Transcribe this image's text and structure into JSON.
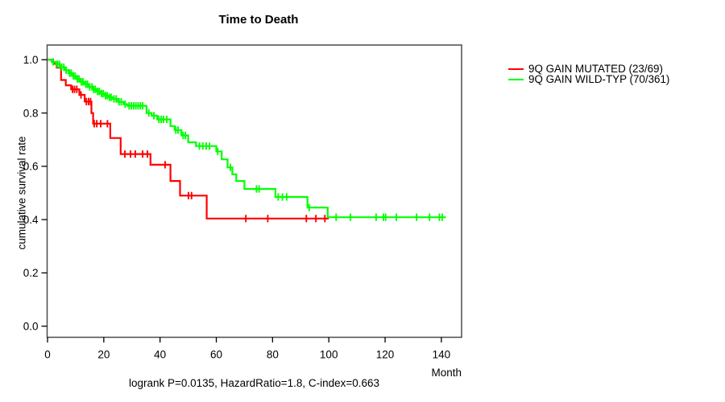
{
  "title": "Time to Death",
  "footer": "logrank P=0.0135, HazardRatio=1.8, C-index=0.663",
  "legend": {
    "items": [
      {
        "label": "9Q GAIN MUTATED (23/69)",
        "color": "#ff0000"
      },
      {
        "label": "9Q GAIN WILD-TYP (70/361)",
        "color": "#00ff00"
      }
    ]
  },
  "chart_data": {
    "type": "line",
    "subtype": "kaplan-meier-step",
    "title": "Time to Death",
    "xlabel": "Month",
    "ylabel": "cumulative survival rate",
    "xlim": [
      0,
      147
    ],
    "ylim": [
      0.0,
      1.0
    ],
    "grid": false,
    "legend_position": "right-outside",
    "annotation": "logrank P=0.0135, HazardRatio=1.8, C-index=0.663",
    "x_ticks": [
      "0",
      "20",
      "40",
      "60",
      "80",
      "100",
      "120",
      "140"
    ],
    "y_ticks": [
      "0.0",
      "0.2",
      "0.4",
      "0.6",
      "0.8",
      "1.0"
    ],
    "axis_color": "#4a4a4a",
    "series": [
      {
        "name": "9Q GAIN MUTATED (23/69)",
        "color": "#ff0000",
        "end_time": 100,
        "steps": [
          [
            0,
            1.0
          ],
          [
            2.0,
            0.985
          ],
          [
            3.3,
            0.97
          ],
          [
            4.8,
            0.924
          ],
          [
            6.5,
            0.904
          ],
          [
            8.4,
            0.889
          ],
          [
            11.3,
            0.868
          ],
          [
            13.2,
            0.843
          ],
          [
            15.6,
            0.8
          ],
          [
            16.2,
            0.76
          ],
          [
            22.3,
            0.706
          ],
          [
            26.0,
            0.646
          ],
          [
            36.6,
            0.606
          ],
          [
            43.7,
            0.545
          ],
          [
            47.1,
            0.49
          ],
          [
            56.6,
            0.404
          ]
        ],
        "censor_times": [
          8.9,
          9.6,
          10.4,
          11.9,
          13.8,
          14.6,
          15.3,
          16.6,
          17.5,
          18.9,
          21.3,
          27.5,
          29.5,
          31.2,
          33.8,
          35.5,
          41.8,
          50.1,
          51.2,
          70.5,
          78.3,
          92.0,
          95.4,
          98.6
        ]
      },
      {
        "name": "9Q GAIN WILD-TYP (70/361)",
        "color": "#00ff00",
        "end_time": 141.6,
        "steps": [
          [
            0,
            1.0
          ],
          [
            1.5,
            0.992
          ],
          [
            3.0,
            0.983
          ],
          [
            4.6,
            0.972
          ],
          [
            6.0,
            0.961
          ],
          [
            7.4,
            0.95
          ],
          [
            8.9,
            0.939
          ],
          [
            10.3,
            0.928
          ],
          [
            11.7,
            0.917
          ],
          [
            13.2,
            0.908
          ],
          [
            14.6,
            0.898
          ],
          [
            16.0,
            0.889
          ],
          [
            17.4,
            0.881
          ],
          [
            18.9,
            0.873
          ],
          [
            20.3,
            0.865
          ],
          [
            21.8,
            0.859
          ],
          [
            23.2,
            0.853
          ],
          [
            25.0,
            0.842
          ],
          [
            27.0,
            0.833
          ],
          [
            28.4,
            0.827
          ],
          [
            35.2,
            0.8
          ],
          [
            37.0,
            0.79
          ],
          [
            39.0,
            0.776
          ],
          [
            43.7,
            0.751
          ],
          [
            45.2,
            0.736
          ],
          [
            47.6,
            0.716
          ],
          [
            50.0,
            0.69
          ],
          [
            52.8,
            0.676
          ],
          [
            60.0,
            0.656
          ],
          [
            61.9,
            0.626
          ],
          [
            64.0,
            0.596
          ],
          [
            65.7,
            0.57
          ],
          [
            67.1,
            0.545
          ],
          [
            70.0,
            0.515
          ],
          [
            81.0,
            0.485
          ],
          [
            92.4,
            0.445
          ],
          [
            99.6,
            0.409
          ]
        ],
        "censor_times": [
          2.0,
          3.5,
          4.2,
          5.0,
          5.8,
          6.6,
          7.8,
          8.4,
          9.2,
          9.8,
          10.6,
          11.2,
          12.0,
          12.6,
          13.6,
          14.2,
          15.0,
          15.8,
          16.4,
          17.0,
          17.8,
          18.4,
          19.2,
          19.8,
          20.6,
          21.2,
          22.0,
          22.6,
          23.6,
          24.4,
          25.4,
          26.2,
          27.6,
          29.0,
          29.8,
          30.6,
          31.4,
          32.2,
          33.0,
          33.8,
          36.0,
          37.8,
          39.6,
          40.4,
          41.2,
          42.4,
          45.6,
          46.4,
          48.2,
          49.0,
          54.0,
          55.2,
          56.4,
          57.6,
          60.5,
          65.0,
          74.3,
          75.2,
          82.0,
          83.5,
          85.0,
          93.0,
          102.6,
          107.7,
          116.8,
          119.4,
          120.2,
          124.0,
          131.2,
          135.8,
          139.3,
          140.3
        ]
      }
    ]
  }
}
